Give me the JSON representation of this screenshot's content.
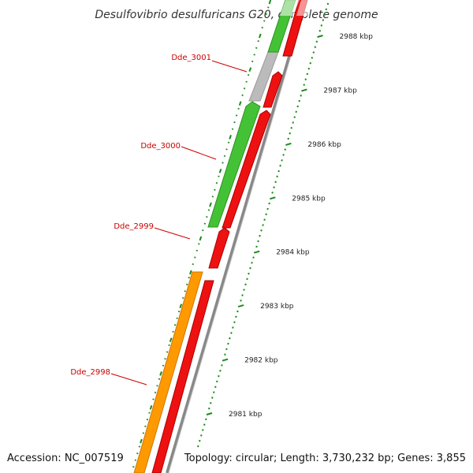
{
  "title": "Desulfovibrio desulfuricans G20, complete genome",
  "footer": {
    "accession": "Accession: NC_007519",
    "summary": "Topology: circular; Length: 3,730,232 bp; Genes: 3,855"
  },
  "colors": {
    "green": "#44c236",
    "grey": "#bbbbbb",
    "orange": "#ff9900",
    "red": "#ee1111",
    "ring": "#888888",
    "tick": "#1a8a1a",
    "label": "#cc0000"
  },
  "genes": [
    {
      "name": "Dde_3001",
      "color": "grey"
    },
    {
      "name": "Dde_3000",
      "color": "green"
    },
    {
      "name": "Dde_2999",
      "color": "red"
    },
    {
      "name": "Dde_2998",
      "color": "orange"
    }
  ],
  "scale": {
    "ticks": [
      {
        "kbp": 2981,
        "label": "2981 kbp"
      },
      {
        "kbp": 2982,
        "label": "2982 kbp"
      },
      {
        "kbp": 2983,
        "label": "2983 kbp"
      },
      {
        "kbp": 2984,
        "label": "2984 kbp"
      },
      {
        "kbp": 2985,
        "label": "2985 kbp"
      },
      {
        "kbp": 2986,
        "label": "2986 kbp"
      },
      {
        "kbp": 2987,
        "label": "2987 kbp"
      },
      {
        "kbp": 2988,
        "label": "2988 kbp"
      }
    ]
  }
}
